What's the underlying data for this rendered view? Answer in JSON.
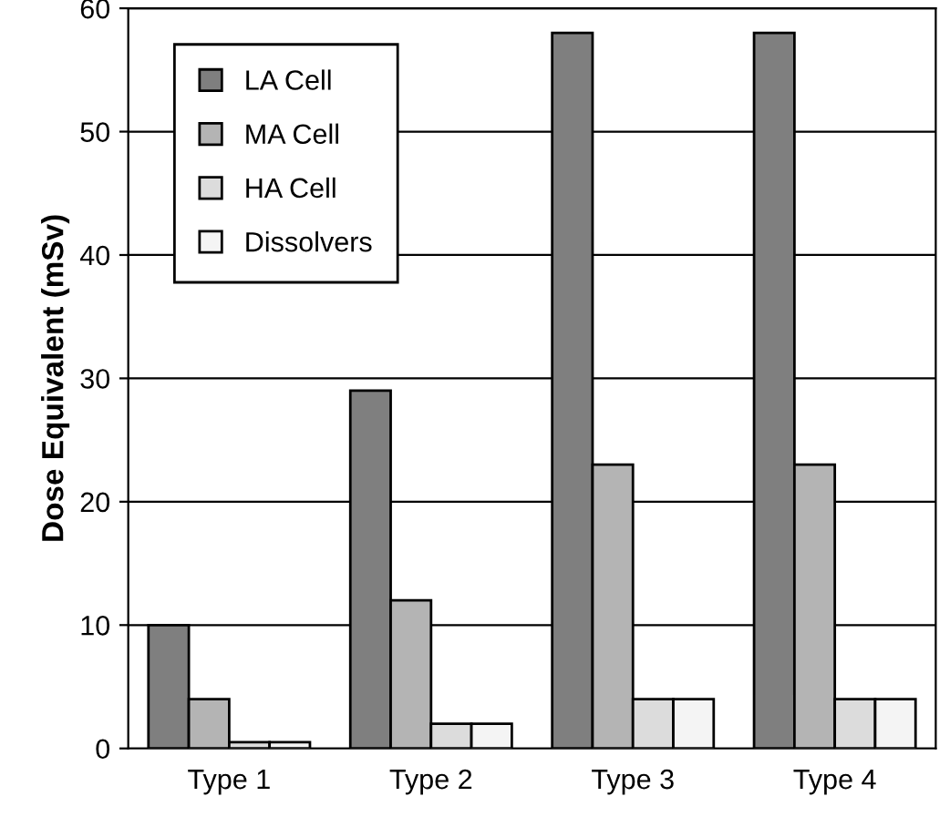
{
  "chart_data": {
    "type": "bar",
    "ylabel": "Dose Equivalent (mSv)",
    "categories": [
      "Type 1",
      "Type 2",
      "Type 3",
      "Type 4"
    ],
    "series": [
      {
        "name": "LA Cell",
        "color": "#7f7f7f",
        "values": [
          10,
          29,
          58,
          58
        ]
      },
      {
        "name": "MA Cell",
        "color": "#b4b4b4",
        "values": [
          4,
          12,
          23,
          23
        ]
      },
      {
        "name": "HA Cell",
        "color": "#dcdcdc",
        "values": [
          0.5,
          2,
          4,
          4
        ]
      },
      {
        "name": "Dissolvers",
        "color": "#f4f4f4",
        "values": [
          0.5,
          2,
          4,
          4
        ]
      }
    ],
    "ylim": [
      0,
      60
    ],
    "yticks": [
      0,
      10,
      20,
      30,
      40,
      50,
      60
    ],
    "grid": "y",
    "legend": "top left"
  }
}
